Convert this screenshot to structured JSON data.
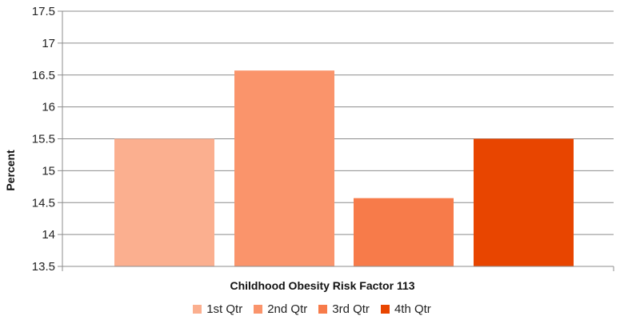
{
  "chart_data": {
    "type": "bar",
    "title": "",
    "xlabel": "Childhood Obesity Risk Factor 113",
    "ylabel": "Percent",
    "ylim": [
      13.5,
      17.5
    ],
    "yticks": [
      "17.5",
      "17",
      "16.5",
      "16",
      "15.5",
      "15",
      "14.5",
      "14",
      "13.5"
    ],
    "grid": true,
    "legend_position": "bottom",
    "series": [
      {
        "name": "1st Qtr",
        "value": 15.5,
        "color": "#FBAF8F"
      },
      {
        "name": "2nd Qtr",
        "value": 16.57,
        "color": "#FA946B"
      },
      {
        "name": "3rd Qtr",
        "value": 14.57,
        "color": "#F77B4A"
      },
      {
        "name": "4th Qtr",
        "value": 15.5,
        "color": "#E84500"
      }
    ]
  }
}
